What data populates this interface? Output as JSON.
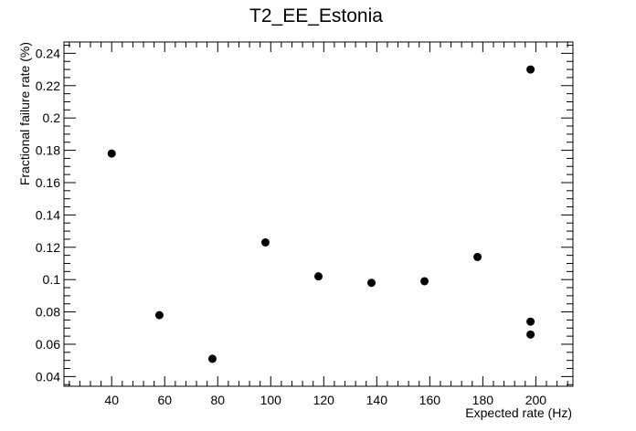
{
  "chart_data": {
    "type": "scatter",
    "title": "T2_EE_Estonia",
    "xlabel": "Expected rate (Hz)",
    "ylabel": "Fractional failure rate (%)",
    "xlim": [
      22,
      214
    ],
    "ylim": [
      0.034,
      0.247
    ],
    "x_ticks": [
      40,
      60,
      80,
      100,
      120,
      140,
      160,
      180,
      200
    ],
    "x_tick_labels": [
      "40",
      "60",
      "80",
      "100",
      "120",
      "140",
      "160",
      "180",
      "200"
    ],
    "y_ticks": [
      0.04,
      0.06,
      0.08,
      0.1,
      0.12,
      0.14,
      0.16,
      0.18,
      0.2,
      0.22,
      0.24
    ],
    "y_tick_labels": [
      "0.04",
      "0.06",
      "0.08",
      "0.1",
      "0.12",
      "0.14",
      "0.16",
      "0.18",
      "0.2",
      "0.22",
      "0.24"
    ],
    "grid": false,
    "legend": "none",
    "points": [
      {
        "x": 40,
        "y": 0.178
      },
      {
        "x": 58,
        "y": 0.078
      },
      {
        "x": 78,
        "y": 0.051
      },
      {
        "x": 98,
        "y": 0.123
      },
      {
        "x": 118,
        "y": 0.102
      },
      {
        "x": 138,
        "y": 0.098
      },
      {
        "x": 158,
        "y": 0.099
      },
      {
        "x": 178,
        "y": 0.114
      },
      {
        "x": 198,
        "y": 0.23
      },
      {
        "x": 198,
        "y": 0.074
      },
      {
        "x": 198,
        "y": 0.066
      }
    ],
    "marker_color": "#000000"
  }
}
